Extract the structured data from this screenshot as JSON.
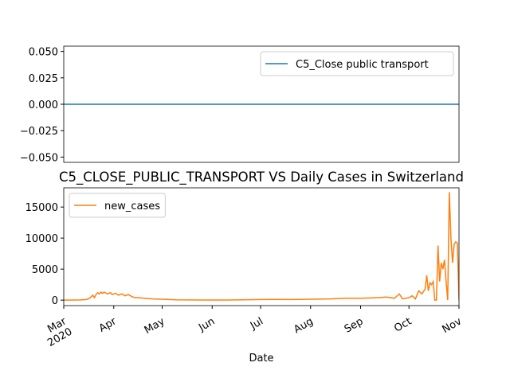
{
  "chart_data": [
    {
      "type": "line",
      "series": [
        {
          "name": "C5_Close public transport",
          "color": "#1f77b4",
          "x": [
            0,
            245
          ],
          "values": [
            0,
            0
          ]
        }
      ],
      "xlim": [
        0,
        245
      ],
      "ylim": [
        -0.055,
        0.055
      ],
      "yticks": [
        {
          "value": -0.05,
          "label": "−0.050"
        },
        {
          "value": -0.025,
          "label": "−0.025"
        },
        {
          "value": 0,
          "label": "0.000"
        },
        {
          "value": 0.025,
          "label": "0.025"
        },
        {
          "value": 0.05,
          "label": "0.050"
        }
      ],
      "legend": "upper right"
    },
    {
      "type": "line",
      "title": "C5_CLOSE_PUBLIC_TRANSPORT VS Daily Cases in Switzerland",
      "x_label": "Date",
      "series": [
        {
          "name": "new_cases",
          "color": "#ff7f0e",
          "x": [
            0,
            5,
            10,
            14,
            16,
            18,
            19,
            20,
            21,
            22,
            23,
            24,
            25,
            27,
            29,
            30,
            32,
            34,
            36,
            38,
            40,
            42,
            44,
            46,
            50,
            55,
            61,
            70,
            80,
            92,
            100,
            110,
            122,
            130,
            140,
            153,
            165,
            175,
            184,
            190,
            195,
            200,
            205,
            208,
            210,
            214,
            216,
            218,
            220,
            222,
            224,
            225,
            226,
            227,
            228,
            229,
            230,
            231,
            232,
            233,
            234,
            235,
            236,
            237,
            238,
            239,
            240,
            241,
            242,
            243,
            244,
            245
          ],
          "values": [
            0,
            10,
            30,
            100,
            300,
            800,
            400,
            900,
            1200,
            1000,
            1300,
            1100,
            1300,
            1000,
            1200,
            900,
            1100,
            800,
            1000,
            700,
            900,
            600,
            400,
            400,
            300,
            200,
            150,
            50,
            30,
            20,
            20,
            50,
            100,
            120,
            100,
            150,
            200,
            300,
            300,
            350,
            400,
            500,
            300,
            1000,
            200,
            400,
            700,
            200,
            1500,
            1000,
            1800,
            4000,
            1500,
            2800,
            2500,
            3000,
            0,
            0,
            8800,
            3000,
            6000,
            5000,
            6500,
            3000,
            0,
            17400,
            10000,
            6000,
            9000,
            9400,
            9200,
            0
          ]
        }
      ],
      "xlim": [
        0,
        245
      ],
      "xticks": [
        {
          "value": 0,
          "label": "Mar\n2020"
        },
        {
          "value": 31,
          "label": "Apr"
        },
        {
          "value": 61,
          "label": "May"
        },
        {
          "value": 92,
          "label": "Jun"
        },
        {
          "value": 122,
          "label": "Jul"
        },
        {
          "value": 153,
          "label": "Aug"
        },
        {
          "value": 184,
          "label": "Sep"
        },
        {
          "value": 214,
          "label": "Oct"
        },
        {
          "value": 245,
          "label": "Nov"
        }
      ],
      "ylim": [
        -880,
        18100
      ],
      "yticks": [
        0,
        5000,
        10000,
        15000
      ],
      "legend": "upper left"
    }
  ]
}
